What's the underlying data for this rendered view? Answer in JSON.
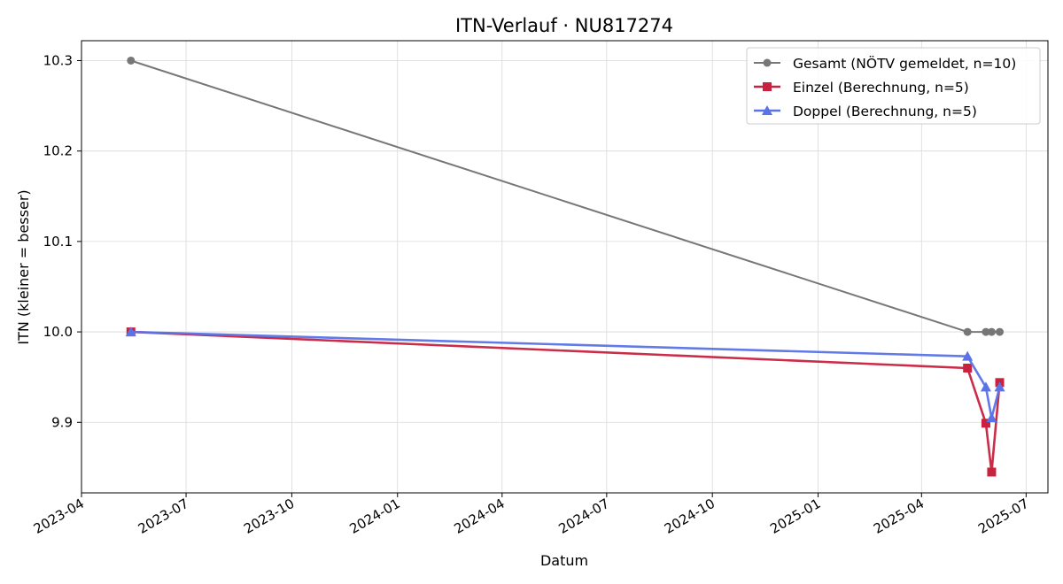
{
  "chart_data": {
    "type": "line",
    "title": "ITN-Verlauf · NU817274",
    "xlabel": "Datum",
    "ylabel": "ITN  (kleiner = besser)",
    "x_axis": "date",
    "xlim": [
      "2023-04-01",
      "2025-07-20"
    ],
    "ylim": [
      9.822,
      10.322
    ],
    "x_ticks": [
      "2023-04",
      "2023-07",
      "2023-10",
      "2024-01",
      "2024-04",
      "2024-07",
      "2024-10",
      "2025-01",
      "2025-04",
      "2025-07"
    ],
    "y_ticks": [
      9.9,
      10.0,
      10.1,
      10.2,
      10.3
    ],
    "grid": true,
    "legend_position": "top-right",
    "series": [
      {
        "name": "Gesamt (NÖTV gemeldet, n=10)",
        "color": "#777777",
        "marker": "circle",
        "points": [
          {
            "x": "2023-05-14",
            "y": 10.3
          },
          {
            "x": "2025-05-11",
            "y": 10.0
          },
          {
            "x": "2025-05-27",
            "y": 10.0
          },
          {
            "x": "2025-06-01",
            "y": 10.0
          },
          {
            "x": "2025-06-08",
            "y": 10.0
          }
        ]
      },
      {
        "name": "Einzel (Berechnung, n=5)",
        "color": "#c8223f",
        "marker": "square",
        "points": [
          {
            "x": "2023-05-14",
            "y": 10.0
          },
          {
            "x": "2025-05-11",
            "y": 9.96
          },
          {
            "x": "2025-05-27",
            "y": 9.899
          },
          {
            "x": "2025-06-01",
            "y": 9.845
          },
          {
            "x": "2025-06-08",
            "y": 9.944
          }
        ]
      },
      {
        "name": "Doppel (Berechnung, n=5)",
        "color": "#5a73e6",
        "marker": "triangle",
        "points": [
          {
            "x": "2023-05-14",
            "y": 10.0
          },
          {
            "x": "2025-05-11",
            "y": 9.973
          },
          {
            "x": "2025-05-27",
            "y": 9.939
          },
          {
            "x": "2025-06-01",
            "y": 9.905
          },
          {
            "x": "2025-06-08",
            "y": 9.939
          }
        ]
      }
    ]
  }
}
